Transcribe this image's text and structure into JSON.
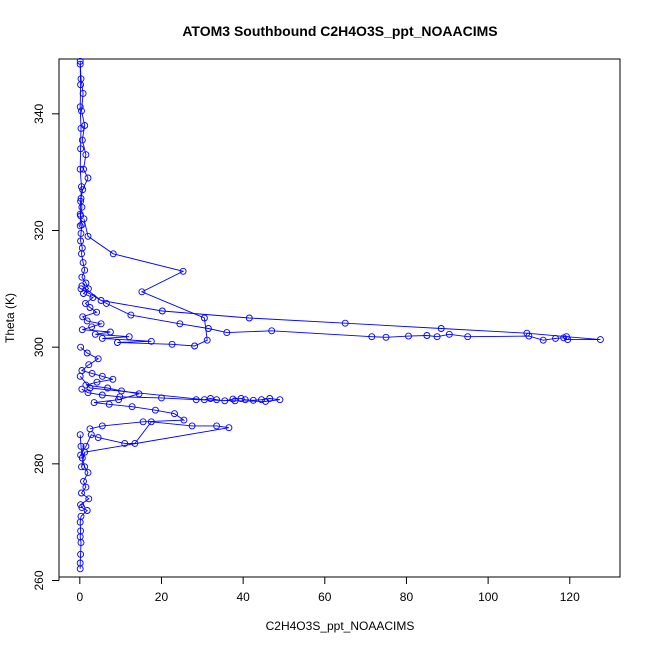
{
  "chart_data": {
    "type": "line",
    "title": "ATOM3 Southbound C2H4O3S_ppt_NOAACIMS",
    "xlabel": "C2H4O3S_ppt_NOAACIMS",
    "ylabel": "Theta (K)",
    "xlim": [
      -5.1,
      132.3
    ],
    "ylim": [
      260.6,
      349.4
    ],
    "xticks": [
      0,
      20,
      40,
      60,
      80,
      100,
      120
    ],
    "yticks": [
      260,
      280,
      300,
      320,
      340
    ],
    "grid": false,
    "legend": "none",
    "color": "#0000ff",
    "marker": "open-circle",
    "series": [
      {
        "x": [
          0.1,
          0.2,
          0.1,
          0.3,
          0.2,
          0.1,
          0.4,
          0.2,
          0.1,
          0.5,
          0.3,
          0.2,
          0.6,
          0.4,
          0.8,
          1.2,
          0.5,
          1.5,
          2.1,
          0.9,
          3.2,
          1.4,
          2.5,
          4.1,
          0.7,
          1.8,
          5.2,
          2.9,
          0.6,
          7.5,
          3.8,
          12.1,
          5.5,
          17.5,
          9.2,
          22.6,
          28.1,
          31.2,
          30.5,
          15.2,
          25.3,
          8.2,
          2.0,
          1.0
        ],
        "y": [
          348.5,
          345.0,
          341.2,
          337.5,
          334.0,
          330.5,
          327.5,
          325.0,
          322.8,
          321.0,
          319.5,
          318.2,
          317.0,
          316.0,
          314.5,
          313.2,
          312.0,
          311.0,
          310.0,
          309.2,
          308.5,
          307.5,
          306.8,
          306.0,
          305.2,
          304.5,
          304.0,
          303.5,
          303.0,
          302.6,
          302.2,
          301.8,
          301.5,
          301.0,
          300.8,
          300.5,
          300.2,
          301.2,
          305.0,
          309.5,
          313.0,
          316.0,
          319.0,
          322.0
        ]
      },
      {
        "x": [
          0.2,
          1.8,
          4.5,
          2.2,
          0.5,
          3.0,
          5.5,
          8.1,
          4.2,
          1.5,
          6.8,
          10.2,
          14.5,
          9.5,
          3.5,
          7.2,
          12.8,
          18.5,
          23.2,
          25.5,
          15.5,
          5.5,
          2.5
        ],
        "y": [
          300.0,
          299.0,
          298.0,
          297.0,
          296.0,
          295.5,
          295.0,
          294.5,
          294.0,
          293.5,
          293.0,
          292.5,
          292.0,
          291.0,
          290.5,
          290.2,
          289.8,
          289.2,
          288.6,
          287.5,
          287.2,
          286.5,
          286.0
        ]
      },
      {
        "x": [
          0.1,
          2.5,
          30.5,
          32.0,
          33.5,
          35.5,
          37.5,
          39.5,
          40.5,
          42.5,
          44.5,
          46.5,
          49.0,
          45.5,
          38.0,
          28.5,
          20.0,
          9.8,
          5.5,
          2.0,
          0.5
        ],
        "y": [
          295.0,
          293.0,
          291.0,
          291.2,
          291.0,
          290.8,
          291.1,
          291.2,
          291.0,
          290.9,
          291.0,
          291.2,
          291.0,
          290.7,
          290.8,
          291.0,
          291.3,
          291.5,
          291.8,
          292.2,
          292.8
        ]
      },
      {
        "x": [
          0.3,
          6.5,
          12.5,
          24.5,
          31.5,
          36.0,
          47.0,
          71.5,
          75.0,
          80.5,
          85.0,
          87.5,
          90.5,
          95.0,
          110.0,
          113.5,
          116.5,
          118.5,
          119.5,
          127.5,
          119.2,
          109.5,
          88.5,
          65.0,
          41.5,
          20.2,
          5.2,
          0.5
        ],
        "y": [
          310.0,
          307.5,
          305.5,
          304.0,
          303.2,
          302.5,
          302.8,
          301.8,
          301.7,
          301.9,
          302.0,
          301.8,
          302.2,
          301.8,
          301.9,
          301.2,
          301.5,
          301.6,
          301.3,
          301.3,
          301.8,
          302.4,
          303.2,
          304.1,
          305.0,
          306.2,
          308.0,
          310.5
        ]
      },
      {
        "x": [
          0.2,
          1.5,
          2.8,
          4.5,
          11.0,
          13.5,
          17.5,
          27.5,
          33.5,
          36.5,
          1.2,
          0.4
        ],
        "y": [
          281.5,
          283.0,
          285.0,
          284.5,
          283.5,
          283.5,
          287.2,
          286.5,
          286.5,
          286.2,
          282.0,
          279.5
        ]
      },
      {
        "x": [
          0.1,
          0.3,
          0.6,
          1.2,
          2.0,
          0.9,
          1.5,
          0.4,
          2.2,
          0.2,
          0.5,
          1.8,
          0.3,
          0.1,
          0.2,
          0.1,
          0.3,
          0.2,
          0.1,
          0.1
        ],
        "y": [
          285.0,
          283.0,
          281.0,
          279.5,
          278.5,
          277.0,
          276.0,
          275.0,
          274.0,
          273.0,
          272.5,
          272.0,
          271.0,
          270.0,
          268.5,
          267.5,
          266.5,
          264.5,
          263.0,
          262.0
        ]
      },
      {
        "x": [
          0.1,
          0.3,
          0.8,
          0.4,
          1.2,
          0.6,
          1.5,
          0.9,
          2.0,
          0.7,
          0.3,
          0.5,
          0.2,
          0.1
        ],
        "y": [
          349.0,
          346.0,
          343.5,
          340.5,
          338.0,
          335.5,
          333.0,
          330.5,
          329.0,
          327.0,
          325.5,
          324.0,
          322.5,
          320.8
        ]
      }
    ]
  }
}
